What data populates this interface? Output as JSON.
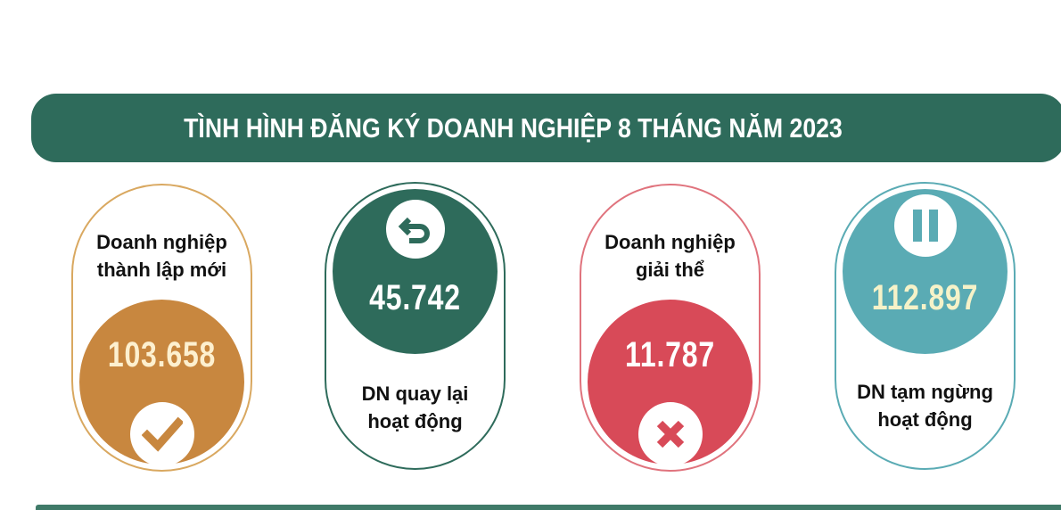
{
  "title": "TÌNH HÌNH ĐĂNG KÝ DOANH NGHIỆP 8 THÁNG NĂM 2023",
  "colors": {
    "banner": "#2e6b5b",
    "new": "#c8873f",
    "returned": "#2e6b5b",
    "dissolved": "#d84a58",
    "suspended": "#5aabb4"
  },
  "cards": [
    {
      "label_line1": "Doanh nghiệp",
      "label_line2": "thành lập mới",
      "value": "103.658",
      "icon": "check-icon"
    },
    {
      "label_line1": "DN quay lại",
      "label_line2": "hoạt động",
      "value": "45.742",
      "icon": "return-arrow-icon"
    },
    {
      "label_line1": "Doanh nghiệp",
      "label_line2": "giải thể",
      "value": "11.787",
      "icon": "x-mark-icon"
    },
    {
      "label_line1": "DN tạm ngừng",
      "label_line2": "hoạt động",
      "value": "112.897",
      "icon": "pause-icon"
    }
  ]
}
